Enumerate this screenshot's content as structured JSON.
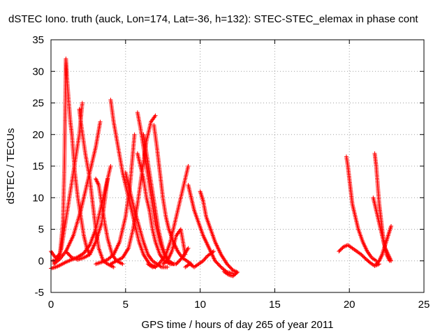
{
  "chart_data": {
    "type": "scatter",
    "title": "dSTEC Iono. truth (auck, Lon=174, Lat=-36, h=132): STEC-STEC_elemax in phase cont",
    "xlabel": "GPS time / hours of day 265 of year 2011",
    "ylabel": "dSTEC  / TECUs",
    "xlim": [
      0,
      25
    ],
    "ylim": [
      -5,
      35
    ],
    "xticks": [
      0,
      5,
      10,
      15,
      20,
      25
    ],
    "yticks": [
      -5,
      0,
      5,
      10,
      15,
      20,
      25,
      30,
      35
    ],
    "grid": true,
    "legend": "none",
    "marker": "+",
    "color": "#ff0000",
    "series": [
      {
        "x": [
          0.0,
          0.3,
          0.6,
          0.8,
          0.9,
          1.0,
          1.1,
          1.2,
          1.3,
          1.4,
          1.5,
          1.6,
          1.8,
          2.0,
          2.2,
          2.4,
          2.6
        ],
        "y": [
          1.5,
          0.5,
          1.0,
          6,
          15,
          32,
          28,
          25,
          22,
          20,
          17,
          14,
          10,
          7,
          4,
          2,
          1
        ]
      },
      {
        "x": [
          0.1,
          0.3,
          0.5,
          0.7,
          0.9,
          1.1,
          1.3,
          1.5,
          1.7,
          1.9,
          2.1
        ],
        "y": [
          0,
          0,
          0.5,
          2,
          5,
          8,
          11,
          14,
          17,
          20,
          25
        ]
      },
      {
        "x": [
          0.0,
          0.3,
          0.6,
          1.0,
          1.4,
          1.8,
          2.2,
          2.6,
          3.0,
          3.4,
          3.7,
          4.0
        ],
        "y": [
          -1.2,
          -1.0,
          -0.7,
          -0.2,
          0.2,
          0.6,
          1.2,
          2.5,
          5,
          9,
          12,
          15
        ]
      },
      {
        "x": [
          0.2,
          0.6,
          1.0,
          1.5,
          2.0,
          2.5,
          3.0,
          3.3
        ],
        "y": [
          -0.5,
          0.3,
          1.5,
          4,
          8,
          13,
          18,
          22
        ]
      },
      {
        "x": [
          1.0,
          1.4,
          1.8,
          2.2,
          2.6,
          3.0,
          3.4,
          3.8
        ],
        "y": [
          1.5,
          0.5,
          0.2,
          0.5,
          1.0,
          3,
          6,
          13
        ]
      },
      {
        "x": [
          1.9,
          2.0,
          2.3,
          2.6,
          2.8,
          3.0,
          3.2,
          3.5,
          3.8,
          4.2
        ],
        "y": [
          24,
          22,
          17,
          13,
          9,
          5,
          2,
          0,
          -0.5,
          -1
        ]
      },
      {
        "x": [
          3.0,
          3.2,
          3.4,
          3.6,
          3.8,
          4.1,
          4.4,
          4.8
        ],
        "y": [
          13,
          12,
          9,
          6,
          3.5,
          1,
          0,
          -0.5
        ]
      },
      {
        "x": [
          3.0,
          3.4,
          3.8,
          4.2,
          4.6,
          5.0,
          5.3,
          5.6
        ],
        "y": [
          -0.5,
          -0.2,
          0.2,
          1,
          3,
          7,
          12,
          20
        ]
      },
      {
        "x": [
          4.0,
          4.2,
          4.5,
          4.8,
          5.0,
          5.3,
          5.6,
          5.9,
          6.2,
          6.6,
          7.0
        ],
        "y": [
          25.5,
          22,
          18,
          14,
          12,
          9,
          6,
          3,
          1,
          -0.5,
          -1
        ]
      },
      {
        "x": [
          4.0,
          4.4,
          4.8,
          5.2,
          5.5,
          5.8,
          6.1,
          6.4,
          6.7,
          7.0
        ],
        "y": [
          -0.5,
          0,
          0.5,
          2,
          5,
          9,
          14,
          19,
          22,
          23
        ]
      },
      {
        "x": [
          5.0,
          5.3,
          5.6,
          5.9,
          6.2,
          6.5,
          6.8,
          7.1,
          7.4,
          7.8
        ],
        "y": [
          14,
          11,
          8,
          5.5,
          3,
          1,
          0,
          -0.5,
          -1,
          -1
        ]
      },
      {
        "x": [
          5.8,
          6.0,
          6.2,
          6.4,
          6.6,
          6.8,
          7.0,
          7.3,
          7.6,
          7.9,
          8.2
        ],
        "y": [
          23.5,
          21,
          18,
          15,
          12,
          9,
          6,
          3,
          1,
          0,
          -0.5
        ]
      },
      {
        "x": [
          5.8,
          6.0,
          6.2,
          6.4,
          6.6,
          6.8,
          7.0,
          7.3,
          7.6,
          8.0
        ],
        "y": [
          17,
          15,
          13,
          10,
          8,
          5,
          3,
          1,
          0,
          -0.5
        ]
      },
      {
        "x": [
          6.2,
          6.4,
          6.6,
          6.8,
          7.0,
          7.2,
          7.5,
          7.8
        ],
        "y": [
          20,
          17,
          14,
          11,
          8,
          5,
          2,
          0
        ]
      },
      {
        "x": [
          6.5,
          6.8,
          7.1,
          7.4,
          7.7,
          8.0,
          8.3,
          8.6,
          8.9,
          9.2
        ],
        "y": [
          -0.5,
          -1,
          -0.8,
          0,
          1,
          3,
          6,
          9,
          12,
          15
        ]
      },
      {
        "x": [
          6.9,
          7.1,
          7.3,
          7.5,
          7.7,
          7.9,
          8.2,
          8.5,
          8.8,
          9.1,
          9.4
        ],
        "y": [
          21.5,
          18,
          14,
          10,
          7,
          5,
          3,
          1.5,
          0.5,
          0,
          -0.5
        ]
      },
      {
        "x": [
          7.5,
          7.8,
          8.1,
          8.4,
          8.7,
          9.0
        ],
        "y": [
          -0.5,
          0,
          1.5,
          4,
          5,
          1
        ]
      },
      {
        "x": [
          8.0,
          8.4,
          8.8,
          9.2
        ],
        "y": [
          -0.5,
          -0.5,
          0.5,
          2
        ]
      },
      {
        "x": [
          9.2,
          9.4,
          9.6,
          9.9,
          10.2,
          10.6,
          11.0,
          11.4,
          11.8,
          12.2
        ],
        "y": [
          12,
          10,
          8,
          6,
          4,
          2,
          0,
          -1,
          -1.8,
          -2.0
        ]
      },
      {
        "x": [
          9.0,
          9.3,
          9.6,
          9.9,
          10.2,
          10.5,
          10.9
        ],
        "y": [
          -1.0,
          -0.5,
          -1,
          -0.5,
          0,
          0.8,
          1.5
        ]
      },
      {
        "x": [
          10.0,
          10.2,
          10.4,
          10.7,
          11.0,
          11.4,
          11.8,
          12.2,
          12.5
        ],
        "y": [
          11,
          9.5,
          7,
          5,
          3,
          1,
          -0.5,
          -1.5,
          -1.8
        ]
      },
      {
        "x": [
          11.6,
          11.9,
          12.2,
          12.5
        ],
        "y": [
          -1.7,
          -2.2,
          -2.4,
          -1.8
        ]
      },
      {
        "x": [
          19.3,
          19.6,
          19.9,
          20.2,
          20.5,
          20.8,
          21.1,
          21.4,
          21.7,
          22.0
        ],
        "y": [
          1.5,
          2.2,
          2.5,
          2.0,
          1.5,
          1.0,
          0.3,
          -0.3,
          -0.8,
          -0.5
        ]
      },
      {
        "x": [
          19.8,
          19.9,
          20.0,
          20.1,
          20.2,
          20.4,
          20.6,
          20.9,
          21.2,
          21.5,
          21.8
        ],
        "y": [
          16.5,
          15,
          13,
          11,
          9,
          7,
          5,
          3,
          1.5,
          0.5,
          0
        ]
      },
      {
        "x": [
          21.7,
          21.8,
          21.9,
          22.0,
          22.1,
          22.2,
          22.3,
          22.5,
          22.7
        ],
        "y": [
          17,
          15,
          12,
          9,
          7,
          5,
          3,
          1,
          0
        ]
      },
      {
        "x": [
          21.6,
          21.8,
          22.0,
          22.2,
          22.4,
          22.6,
          22.8
        ],
        "y": [
          10,
          8,
          6,
          4,
          2,
          1,
          0
        ]
      },
      {
        "x": [
          21.8,
          22.0,
          22.2,
          22.4,
          22.6,
          22.8
        ],
        "y": [
          -0.5,
          0,
          1,
          2.5,
          4,
          5.5
        ]
      }
    ]
  }
}
